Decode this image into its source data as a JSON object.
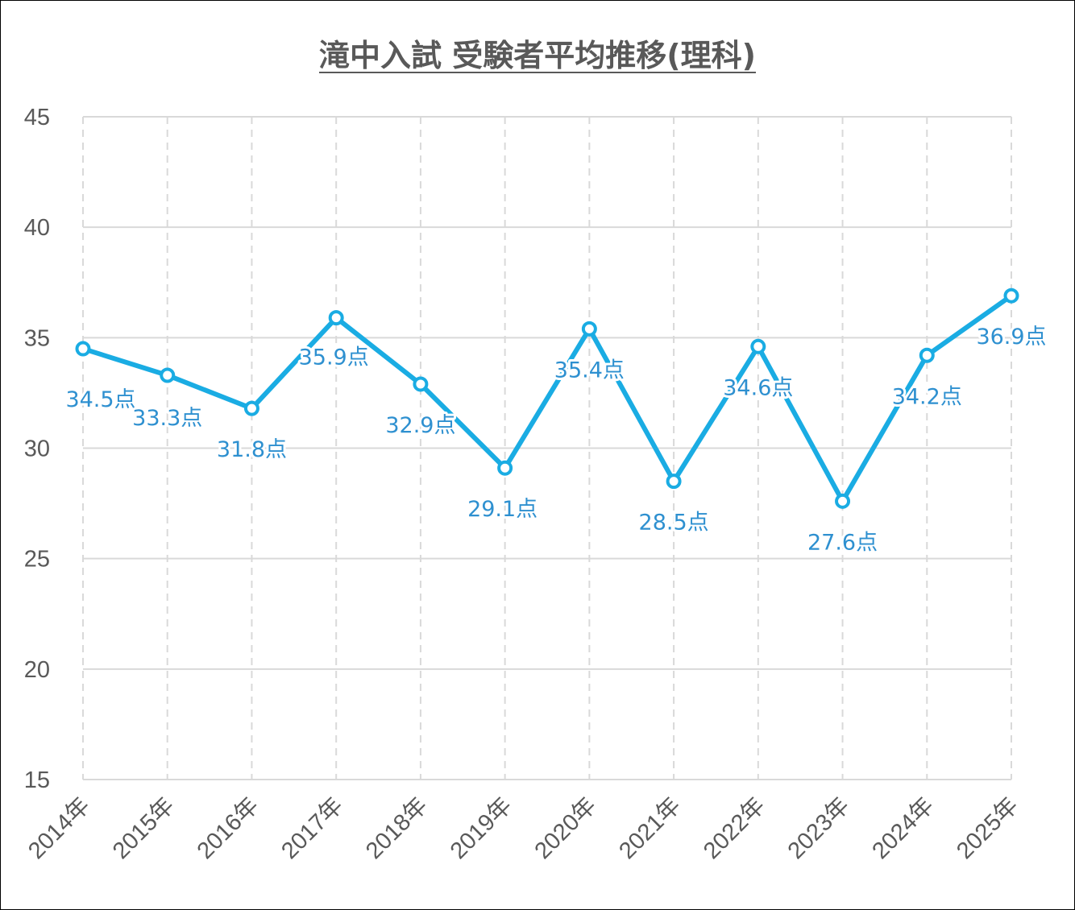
{
  "chart_data": {
    "type": "line",
    "title": "滝中入試 受験者平均推移(理科)",
    "categories": [
      "2014年",
      "2015年",
      "2016年",
      "2017年",
      "2018年",
      "2019年",
      "2020年",
      "2021年",
      "2022年",
      "2023年",
      "2024年",
      "2025年"
    ],
    "values": [
      34.5,
      33.3,
      31.8,
      35.9,
      32.9,
      29.1,
      35.4,
      28.5,
      34.6,
      27.6,
      34.2,
      36.9
    ],
    "data_labels": [
      "34.5点",
      "33.3点",
      "31.8点",
      "35.9点",
      "32.9点",
      "29.1点",
      "35.4点",
      "28.5点",
      "34.6点",
      "27.6点",
      "34.2点",
      "36.9点"
    ],
    "yticks": [
      "15",
      "20",
      "25",
      "30",
      "35",
      "40",
      "45"
    ],
    "ylim": [
      15,
      45
    ],
    "grid": true,
    "legend": "none",
    "colors": {
      "line": "#1AACE3",
      "label": "#2E90D0",
      "grid": "#D9D9D9",
      "text": "#595959"
    }
  }
}
